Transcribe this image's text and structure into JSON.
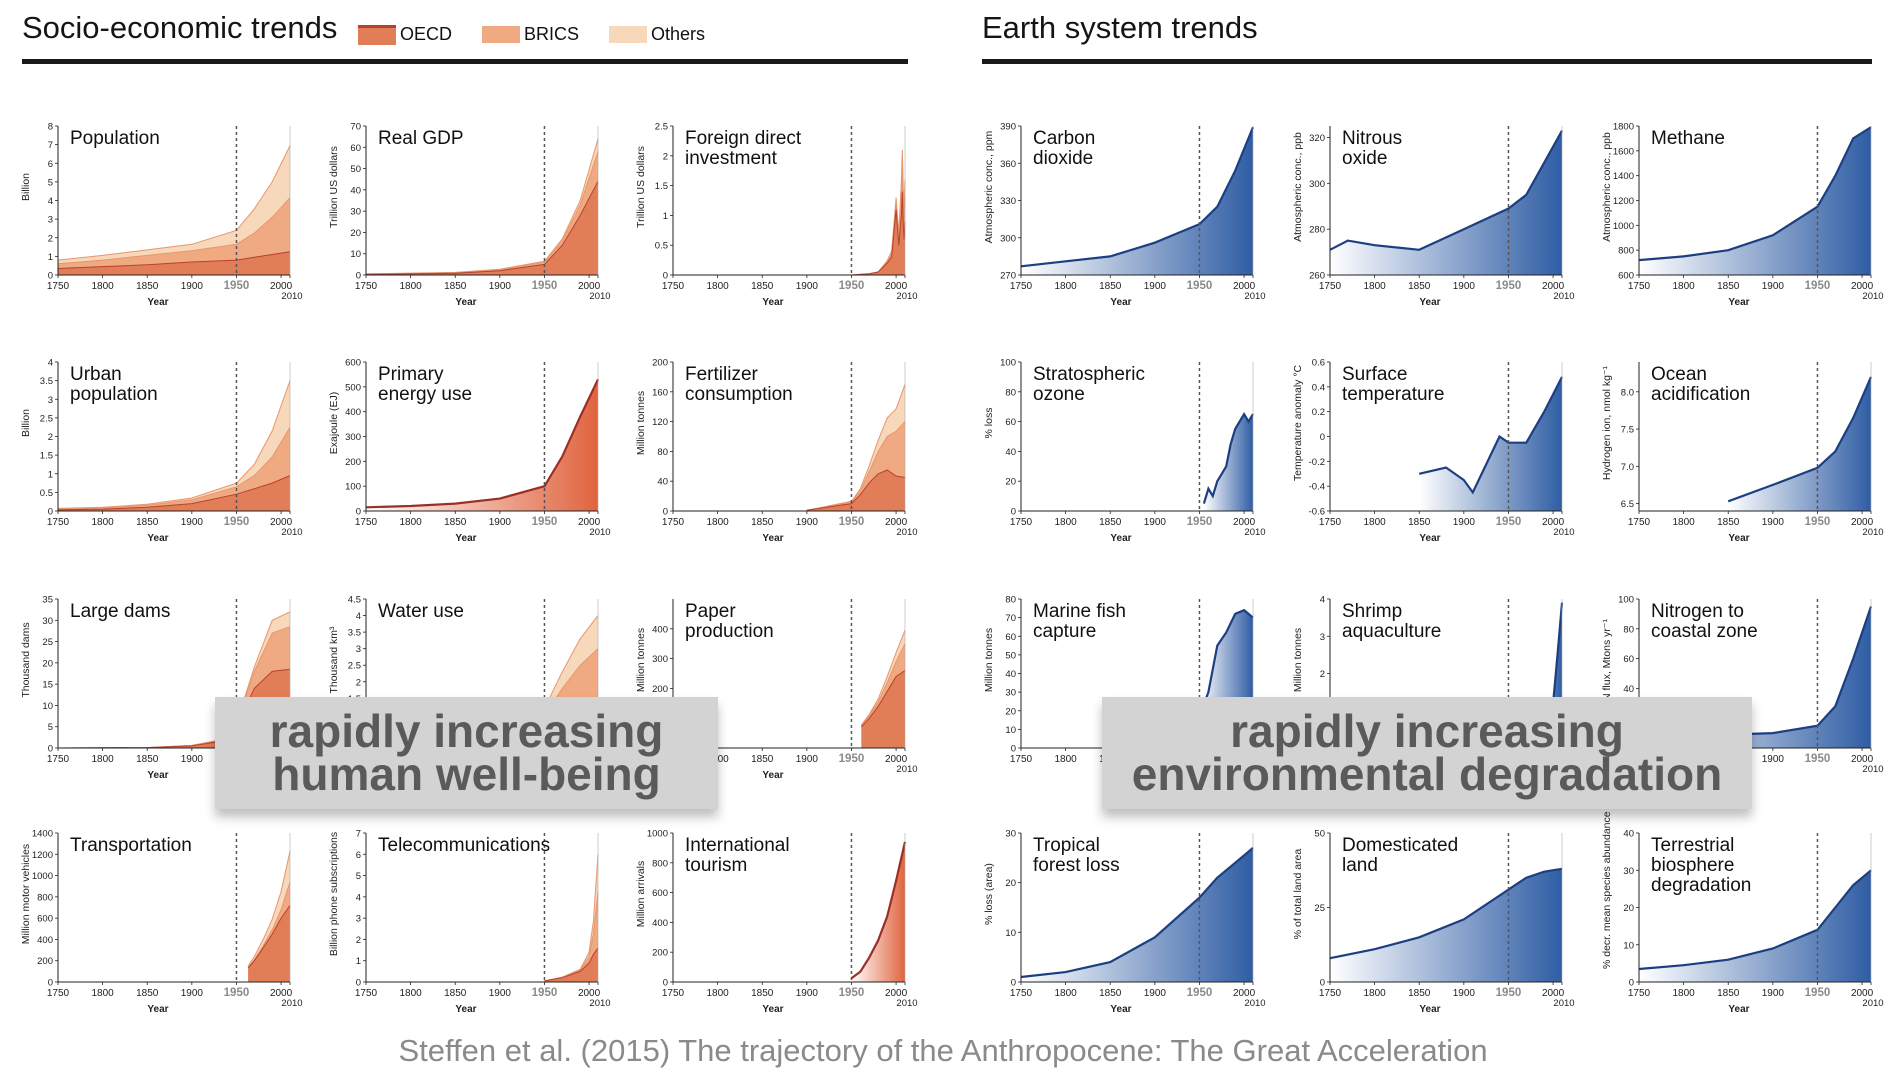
{
  "header": {
    "left_title": "Socio-economic trends",
    "right_title": "Earth system trends",
    "legend": [
      {
        "label": "OECD",
        "color": "#e17d57"
      },
      {
        "label": "BRICS",
        "color": "#efaa82"
      },
      {
        "label": "Others",
        "color": "#f8d8bb"
      }
    ]
  },
  "colors": {
    "oecd": "#e17d57",
    "brics": "#efaa82",
    "others": "#f8d8bb",
    "dark_red": "#9c2f25",
    "blue": "#2f5da4",
    "blue_line": "#1c3f82"
  },
  "banners": {
    "left": [
      "rapidly increasing",
      "human well-being"
    ],
    "right": [
      "rapidly increasing",
      "environmental degradation"
    ]
  },
  "citation": "Steffen et al. (2015) The trajectory of the Anthropocene: The Great Acceleration",
  "chart_data": [
    {
      "id": "population",
      "side": "socio",
      "type": "area",
      "title": "Population",
      "ylabel": "Billion",
      "yticks": [
        "0",
        "1",
        "2",
        "3",
        "4",
        "5",
        "6",
        "7",
        "8"
      ],
      "ylim": [
        0,
        8
      ],
      "x": [
        1750,
        1800,
        1850,
        1900,
        1950,
        1970,
        1990,
        2010
      ],
      "series": [
        {
          "name": "OECD",
          "values": [
            0.35,
            0.45,
            0.55,
            0.7,
            0.8,
            0.95,
            1.1,
            1.25
          ]
        },
        {
          "name": "BRICS",
          "values": [
            0.25,
            0.35,
            0.5,
            0.6,
            0.85,
            1.3,
            2.0,
            2.9
          ]
        },
        {
          "name": "Others",
          "values": [
            0.2,
            0.25,
            0.3,
            0.35,
            0.75,
            1.3,
            1.9,
            2.8
          ]
        }
      ]
    },
    {
      "id": "real-gdp",
      "side": "socio",
      "type": "area",
      "title": "Real GDP",
      "ylabel": "Trillion US dollars",
      "yticks": [
        "0",
        "10",
        "20",
        "30",
        "40",
        "50",
        "60",
        "70"
      ],
      "ylim": [
        0,
        70
      ],
      "x": [
        1750,
        1850,
        1900,
        1950,
        1970,
        1990,
        2010
      ],
      "series": [
        {
          "name": "OECD",
          "values": [
            0.3,
            0.8,
            2,
            5,
            14,
            28,
            44
          ]
        },
        {
          "name": "BRICS",
          "values": [
            0.2,
            0.3,
            0.5,
            1,
            2,
            5,
            14
          ]
        },
        {
          "name": "Others",
          "values": [
            0,
            0.1,
            0.2,
            0.5,
            1,
            2,
            6
          ]
        }
      ]
    },
    {
      "id": "fdi",
      "side": "socio",
      "type": "area",
      "title": "Foreign direct\ninvestment",
      "ylabel": "Trillion US dollars",
      "yticks": [
        "0",
        "0.5",
        "1",
        "1.5",
        "2",
        "2.5"
      ],
      "ylim": [
        0,
        2.5
      ],
      "x": [
        1950,
        1970,
        1980,
        1990,
        1995,
        2000,
        2003,
        2006,
        2007,
        2008,
        2009,
        2010
      ],
      "series": [
        {
          "name": "OECD",
          "values": [
            0,
            0.02,
            0.05,
            0.2,
            0.3,
            1.1,
            0.5,
            1.0,
            1.4,
            0.9,
            0.6,
            0.9
          ]
        },
        {
          "name": "BRICS",
          "values": [
            0,
            0,
            0,
            0.02,
            0.05,
            0.1,
            0.1,
            0.3,
            0.4,
            0.4,
            0.3,
            0.4
          ]
        },
        {
          "name": "Others",
          "values": [
            0,
            0,
            0,
            0.02,
            0.05,
            0.1,
            0.1,
            0.3,
            0.3,
            0.2,
            0.2,
            0.3
          ]
        }
      ]
    },
    {
      "id": "urban-population",
      "side": "socio",
      "type": "area",
      "title": "Urban\npopulation",
      "ylabel": "Billion",
      "yticks": [
        "0",
        "0.5",
        "1",
        "1.5",
        "2",
        "2.5",
        "3",
        "3.5",
        "4"
      ],
      "ylim": [
        0,
        4
      ],
      "x": [
        1750,
        1800,
        1850,
        1900,
        1950,
        1970,
        1990,
        2010
      ],
      "series": [
        {
          "name": "OECD",
          "values": [
            0.03,
            0.05,
            0.1,
            0.2,
            0.45,
            0.6,
            0.75,
            0.95
          ]
        },
        {
          "name": "BRICS",
          "values": [
            0.02,
            0.03,
            0.05,
            0.1,
            0.2,
            0.35,
            0.7,
            1.3
          ]
        },
        {
          "name": "Others",
          "values": [
            0.02,
            0.02,
            0.03,
            0.05,
            0.1,
            0.3,
            0.7,
            1.25
          ]
        }
      ]
    },
    {
      "id": "primary-energy",
      "side": "socio",
      "type": "area-line",
      "title": "Primary\nenergy use",
      "ylabel": "Exajoule (EJ)",
      "yticks": [
        "0",
        "100",
        "200",
        "300",
        "400",
        "500",
        "600"
      ],
      "ylim": [
        0,
        600
      ],
      "x": [
        1750,
        1800,
        1850,
        1900,
        1950,
        1970,
        1990,
        2010
      ],
      "values": [
        15,
        20,
        30,
        50,
        100,
        220,
        380,
        530
      ]
    },
    {
      "id": "fertilizer",
      "side": "socio",
      "type": "area",
      "title": "Fertilizer\nconsumption",
      "ylabel": "Million tonnes",
      "yticks": [
        "0",
        "40",
        "80",
        "120",
        "160",
        "200"
      ],
      "ylim": [
        0,
        200
      ],
      "x": [
        1900,
        1950,
        1960,
        1970,
        1980,
        1990,
        2000,
        2010
      ],
      "series": [
        {
          "name": "OECD",
          "values": [
            1,
            10,
            22,
            38,
            50,
            55,
            47,
            45
          ]
        },
        {
          "name": "BRICS",
          "values": [
            0,
            2,
            5,
            15,
            30,
            45,
            60,
            75
          ]
        },
        {
          "name": "Others",
          "values": [
            0,
            1,
            3,
            8,
            15,
            25,
            30,
            50
          ]
        }
      ]
    },
    {
      "id": "large-dams",
      "side": "socio",
      "type": "area",
      "title": "Large dams",
      "ylabel": "Thousand dams",
      "yticks": [
        "0",
        "5",
        "10",
        "15",
        "20",
        "25",
        "30",
        "35"
      ],
      "ylim": [
        0,
        35
      ],
      "x": [
        1750,
        1850,
        1900,
        1930,
        1950,
        1970,
        1990,
        2010
      ],
      "series": [
        {
          "name": "OECD",
          "values": [
            0,
            0.1,
            0.5,
            1.5,
            5,
            14,
            18,
            18.5
          ]
        },
        {
          "name": "BRICS",
          "values": [
            0,
            0,
            0.1,
            0.2,
            0.5,
            4,
            9,
            10
          ]
        },
        {
          "name": "Others",
          "values": [
            0,
            0,
            0,
            0.1,
            0.3,
            1,
            3,
            3.5
          ]
        }
      ]
    },
    {
      "id": "water-use",
      "side": "socio",
      "type": "area",
      "title": "Water use",
      "ylabel": "Thousand km³",
      "yticks": [
        "0",
        "0.5",
        "1",
        "1.5",
        "2",
        "2.5",
        "3",
        "3.5",
        "4",
        "4.5"
      ],
      "ylim": [
        0,
        4.5
      ],
      "x": [
        1900,
        1950,
        1970,
        1990,
        2010
      ],
      "series": [
        {
          "name": "OECD",
          "values": [
            0.3,
            0.6,
            0.9,
            1.1,
            1.2
          ]
        },
        {
          "name": "BRICS",
          "values": [
            0.2,
            0.4,
            0.9,
            1.4,
            1.8
          ]
        },
        {
          "name": "Others",
          "values": [
            0.1,
            0.2,
            0.5,
            0.8,
            1.0
          ]
        }
      ]
    },
    {
      "id": "paper",
      "side": "socio",
      "type": "area",
      "title": "Paper\nproduction",
      "ylabel": "Million tonnes",
      "yticks": [
        "0",
        "100",
        "200",
        "300",
        "400"
      ],
      "ylim": [
        0,
        500
      ],
      "x": [
        1961,
        1970,
        1980,
        1990,
        2000,
        2010
      ],
      "series": [
        {
          "name": "OECD",
          "values": [
            70,
            100,
            140,
            190,
            240,
            260
          ]
        },
        {
          "name": "BRICS",
          "values": [
            5,
            8,
            15,
            30,
            50,
            90
          ]
        },
        {
          "name": "Others",
          "values": [
            2,
            5,
            10,
            20,
            30,
            45
          ]
        }
      ]
    },
    {
      "id": "transportation",
      "side": "socio",
      "type": "area",
      "title": "Transportation",
      "ylabel": "Million motor vehicles",
      "yticks": [
        "0",
        "200",
        "400",
        "600",
        "800",
        "1000",
        "1200",
        "1400"
      ],
      "ylim": [
        0,
        1400
      ],
      "x": [
        1963,
        1970,
        1980,
        1990,
        2000,
        2010
      ],
      "series": [
        {
          "name": "OECD",
          "values": [
            130,
            200,
            320,
            450,
            600,
            720
          ]
        },
        {
          "name": "BRICS",
          "values": [
            5,
            10,
            20,
            40,
            80,
            220
          ]
        },
        {
          "name": "Others",
          "values": [
            15,
            30,
            60,
            100,
            170,
            290
          ]
        }
      ]
    },
    {
      "id": "telecom",
      "side": "socio",
      "type": "area",
      "title": "Telecommunications",
      "ylabel": "Billion phone subscriptions",
      "yticks": [
        "0",
        "1",
        "2",
        "3",
        "4",
        "5",
        "6",
        "7"
      ],
      "ylim": [
        0,
        7
      ],
      "x": [
        1950,
        1970,
        1990,
        2000,
        2005,
        2010
      ],
      "series": [
        {
          "name": "OECD",
          "values": [
            0.05,
            0.2,
            0.5,
            0.9,
            1.3,
            1.6
          ]
        },
        {
          "name": "BRICS",
          "values": [
            0,
            0.02,
            0.05,
            0.3,
            1.0,
            2.6
          ]
        },
        {
          "name": "Others",
          "values": [
            0,
            0.01,
            0.05,
            0.2,
            0.6,
            1.8
          ]
        }
      ]
    },
    {
      "id": "tourism",
      "side": "socio",
      "type": "area-line",
      "title": "International\ntourism",
      "ylabel": "Million arrivals",
      "yticks": [
        "0",
        "200",
        "400",
        "600",
        "800",
        "1000"
      ],
      "ylim": [
        0,
        1000
      ],
      "x": [
        1950,
        1960,
        1970,
        1980,
        1990,
        2000,
        2010
      ],
      "values": [
        25,
        70,
        165,
        280,
        440,
        680,
        940
      ]
    },
    {
      "id": "co2",
      "side": "earth",
      "type": "blue",
      "title": "Carbon\ndioxide",
      "ylabel": "Atmospheric conc., ppm",
      "yticks": [
        "270",
        "300",
        "330",
        "360",
        "390"
      ],
      "ylim": [
        270,
        390
      ],
      "x": [
        1750,
        1800,
        1850,
        1900,
        1950,
        1970,
        1990,
        2010
      ],
      "values": [
        277,
        281,
        285,
        296,
        311,
        325,
        354,
        389
      ]
    },
    {
      "id": "n2o",
      "side": "earth",
      "type": "blue",
      "title": "Nitrous\noxide",
      "ylabel": "Atmospheric conc., ppb",
      "yticks": [
        "260",
        "280",
        "300",
        "320"
      ],
      "ylim": [
        260,
        325
      ],
      "x": [
        1750,
        1770,
        1800,
        1850,
        1900,
        1950,
        1970,
        1990,
        2010
      ],
      "values": [
        271,
        275,
        273,
        271,
        280,
        289,
        295,
        309,
        323
      ]
    },
    {
      "id": "methane",
      "side": "earth",
      "type": "blue",
      "title": "Methane",
      "ylabel": "Atmospheric conc., ppb",
      "yticks": [
        "600",
        "800",
        "1000",
        "1200",
        "1400",
        "1600",
        "1800"
      ],
      "ylim": [
        600,
        1800
      ],
      "x": [
        1750,
        1800,
        1850,
        1900,
        1950,
        1970,
        1990,
        2010
      ],
      "values": [
        720,
        750,
        800,
        920,
        1150,
        1400,
        1700,
        1790
      ]
    },
    {
      "id": "ozone",
      "side": "earth",
      "type": "blue",
      "title": "Stratospheric\nozone",
      "ylabel": "% loss",
      "yticks": [
        "0",
        "20",
        "40",
        "60",
        "80",
        "100"
      ],
      "ylim": [
        0,
        100
      ],
      "x": [
        1955,
        1960,
        1965,
        1970,
        1975,
        1980,
        1985,
        1990,
        1995,
        2000,
        2005,
        2010
      ],
      "values": [
        5,
        15,
        10,
        20,
        25,
        30,
        45,
        55,
        60,
        65,
        60,
        65
      ]
    },
    {
      "id": "surface-temp",
      "side": "earth",
      "type": "blue",
      "title": "Surface\ntemperature",
      "ylabel": "Temperature anomaly °C",
      "yticks": [
        "-0.6",
        "-0.4",
        "-0.2",
        "0",
        "0.2",
        "0.4",
        "0.6"
      ],
      "ylim": [
        -0.6,
        0.6
      ],
      "x": [
        1850,
        1880,
        1900,
        1910,
        1940,
        1950,
        1970,
        1990,
        2010
      ],
      "values": [
        -0.3,
        -0.25,
        -0.35,
        -0.45,
        0.0,
        -0.05,
        -0.05,
        0.2,
        0.48
      ]
    },
    {
      "id": "ocean-acid",
      "side": "earth",
      "type": "blue",
      "title": "Ocean\nacidification",
      "ylabel": "Hydrogen ion, nmol kg⁻¹",
      "yticks": [
        "6.5",
        "7.0",
        "7.5",
        "8.0"
      ],
      "ylim": [
        6.4,
        8.4
      ],
      "x": [
        1850,
        1900,
        1950,
        1970,
        1990,
        2010
      ],
      "values": [
        6.53,
        6.75,
        6.98,
        7.2,
        7.65,
        8.2
      ]
    },
    {
      "id": "fish",
      "side": "earth",
      "type": "blue",
      "title": "Marine fish\ncapture",
      "ylabel": "Million tonnes",
      "yticks": [
        "0",
        "10",
        "20",
        "30",
        "40",
        "50",
        "60",
        "70",
        "80"
      ],
      "ylim": [
        0,
        80
      ],
      "x": [
        1950,
        1960,
        1970,
        1980,
        1990,
        2000,
        2010
      ],
      "values": [
        17,
        30,
        55,
        62,
        72,
        74,
        70
      ]
    },
    {
      "id": "shrimp",
      "side": "earth",
      "type": "blue",
      "title": "Shrimp\naquaculture",
      "ylabel": "Million tonnes",
      "yticks": [
        "0",
        "1",
        "2",
        "3",
        "4"
      ],
      "ylim": [
        0,
        4
      ],
      "x": [
        1950,
        1970,
        1990,
        2000,
        2005,
        2010
      ],
      "values": [
        0,
        0.02,
        0.6,
        1.2,
        2.5,
        3.9
      ]
    },
    {
      "id": "nitrogen",
      "side": "earth",
      "type": "blue",
      "title": "Nitrogen to\ncoastal zone",
      "ylabel": "N flux, Mtons yr⁻¹",
      "yticks": [
        "0",
        "20",
        "40",
        "60",
        "80",
        "100"
      ],
      "ylim": [
        0,
        100
      ],
      "x": [
        1750,
        1850,
        1900,
        1950,
        1970,
        1990,
        2010
      ],
      "values": [
        8,
        9,
        10,
        15,
        28,
        60,
        95
      ]
    },
    {
      "id": "forest",
      "side": "earth",
      "type": "blue",
      "title": "Tropical\nforest loss",
      "ylabel": "% loss (area)",
      "yticks": [
        "0",
        "10",
        "20",
        "30"
      ],
      "ylim": [
        0,
        30
      ],
      "x": [
        1750,
        1800,
        1850,
        1900,
        1950,
        1970,
        1990,
        2010
      ],
      "values": [
        1,
        2,
        4,
        9,
        17,
        21,
        24,
        27
      ]
    },
    {
      "id": "domesticated-land",
      "side": "earth",
      "type": "blue",
      "title": "Domesticated\nland",
      "ylabel": "% of total land area",
      "yticks": [
        "0",
        "25",
        "50"
      ],
      "ylim": [
        0,
        50
      ],
      "x": [
        1750,
        1800,
        1850,
        1900,
        1950,
        1970,
        1990,
        2010
      ],
      "values": [
        8,
        11,
        15,
        21,
        31,
        35,
        37,
        38
      ]
    },
    {
      "id": "terrestrial-bio",
      "side": "earth",
      "type": "blue",
      "title": "Terrestrial\nbiosphere\ndegradation",
      "ylabel": "% decr. mean species abundance",
      "yticks": [
        "0",
        "10",
        "20",
        "30",
        "40"
      ],
      "ylim": [
        0,
        40
      ],
      "x": [
        1750,
        1800,
        1850,
        1900,
        1950,
        1970,
        1990,
        2010
      ],
      "values": [
        3.5,
        4.5,
        6,
        9,
        14,
        20,
        26,
        30
      ]
    }
  ],
  "axis": {
    "x_ticks": [
      "1750",
      "1800",
      "1850",
      "1900",
      "1950",
      "2000"
    ],
    "x_end": "2010",
    "xlabel": "Year",
    "xlim": [
      1750,
      2010
    ],
    "marker": 1950
  }
}
